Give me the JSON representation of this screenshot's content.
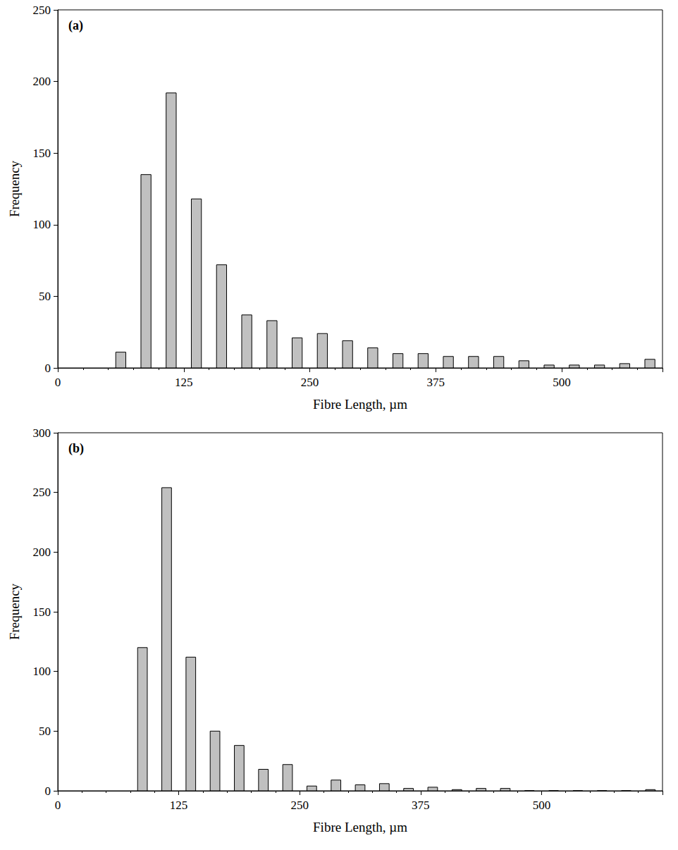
{
  "chart_data": [
    {
      "type": "histogram",
      "title": "(a)",
      "bins": [
        50,
        75,
        100,
        125,
        150,
        175,
        200,
        225,
        250,
        275,
        300,
        325,
        350,
        375,
        400,
        425,
        450,
        475,
        500,
        525,
        550,
        575,
        600
      ],
      "values": [
        11,
        135,
        192,
        118,
        72,
        37,
        33,
        21,
        24,
        19,
        14,
        10,
        10,
        8,
        8,
        8,
        5,
        2,
        2,
        2,
        3,
        6
      ],
      "color": "#c0c0c0",
      "x_label": "Fibre Length, µm",
      "y_label": "Frequency",
      "xlim": [
        0,
        600
      ],
      "xticks": [
        0,
        125,
        250,
        375,
        500
      ],
      "ylim": [
        0,
        250
      ],
      "yticks": [
        0,
        50,
        100,
        150,
        200,
        250
      ],
      "grid": false
    },
    {
      "type": "histogram",
      "title": "(b)",
      "bins": [
        75,
        100,
        125,
        150,
        175,
        200,
        225,
        250,
        275,
        300,
        325,
        350,
        375,
        400,
        425,
        450,
        475,
        500,
        525,
        550,
        575,
        600,
        625
      ],
      "values": [
        120,
        254,
        112,
        50,
        38,
        18,
        22,
        4,
        9,
        5,
        6,
        2,
        3,
        1,
        2,
        2,
        0,
        0,
        0,
        0,
        0,
        1
      ],
      "color": "#c0c0c0",
      "x_label": "Fibre Length, µm",
      "y_label": "Frequency",
      "xlim": [
        0,
        625
      ],
      "xticks": [
        0,
        125,
        250,
        375,
        500
      ],
      "ylim": [
        0,
        300
      ],
      "yticks": [
        0,
        50,
        100,
        150,
        200,
        250,
        300
      ],
      "grid": false
    }
  ]
}
